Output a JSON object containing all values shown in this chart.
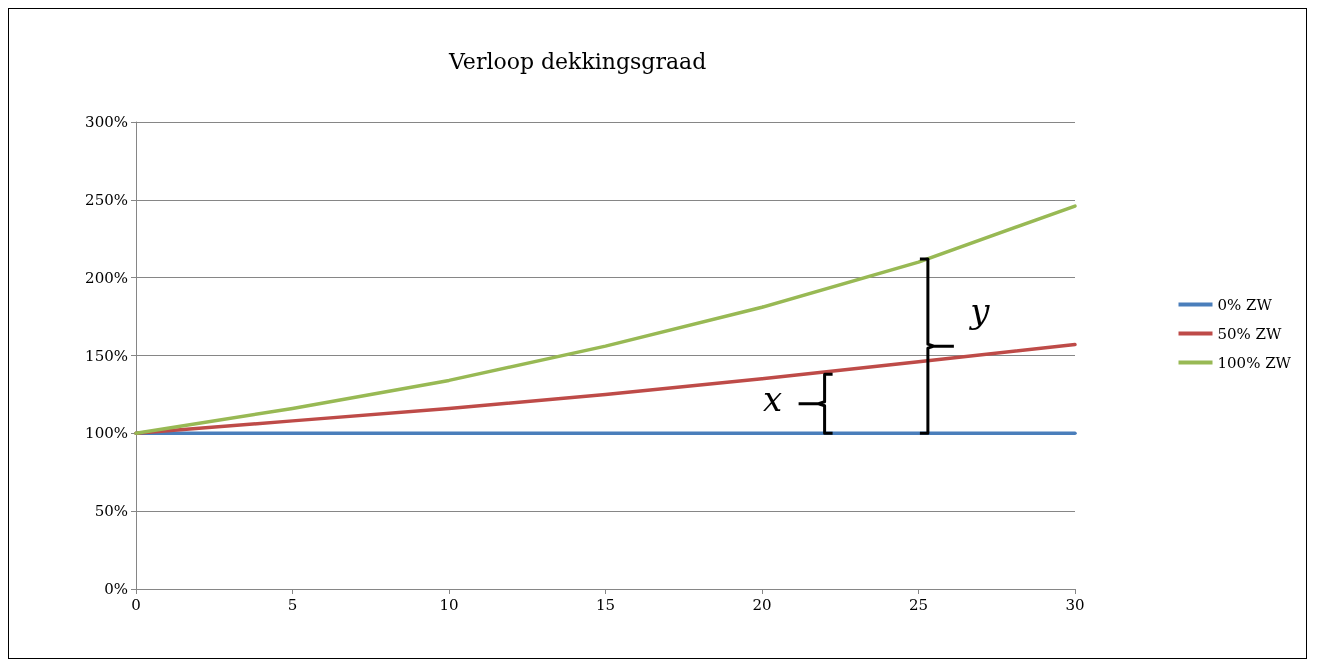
{
  "chart_data": {
    "type": "line",
    "title": "Verloop dekkingsgraad",
    "x": [
      0,
      5,
      10,
      15,
      20,
      25,
      30
    ],
    "series": [
      {
        "name": "0% ZW",
        "color": "#4a7ebb",
        "values": [
          100,
          100,
          100,
          100,
          100,
          100,
          100
        ]
      },
      {
        "name": "50% ZW",
        "color": "#be4b48",
        "values": [
          100,
          108,
          116,
          125,
          135,
          146,
          157
        ]
      },
      {
        "name": "100% ZW",
        "color": "#98b954",
        "values": [
          100,
          116,
          134,
          156,
          181,
          210,
          246
        ]
      }
    ],
    "xlim": [
      0,
      30
    ],
    "xticks": [
      0,
      5,
      10,
      15,
      20,
      25,
      30
    ],
    "ylim": [
      0,
      300
    ],
    "yticks": [
      {
        "value": 0,
        "label": "0%"
      },
      {
        "value": 50,
        "label": "50%"
      },
      {
        "value": 100,
        "label": "100%"
      },
      {
        "value": 150,
        "label": "150%"
      },
      {
        "value": 200,
        "label": "200%"
      },
      {
        "value": 250,
        "label": "250%"
      },
      {
        "value": 300,
        "label": "300%"
      }
    ],
    "annotations": [
      {
        "text": "x",
        "x": 22,
        "y": 138
      },
      {
        "text": "y",
        "x": 25.3,
        "y": 212
      }
    ],
    "grid": "y",
    "legend": "right",
    "marker": "none",
    "line_style": "solid"
  }
}
